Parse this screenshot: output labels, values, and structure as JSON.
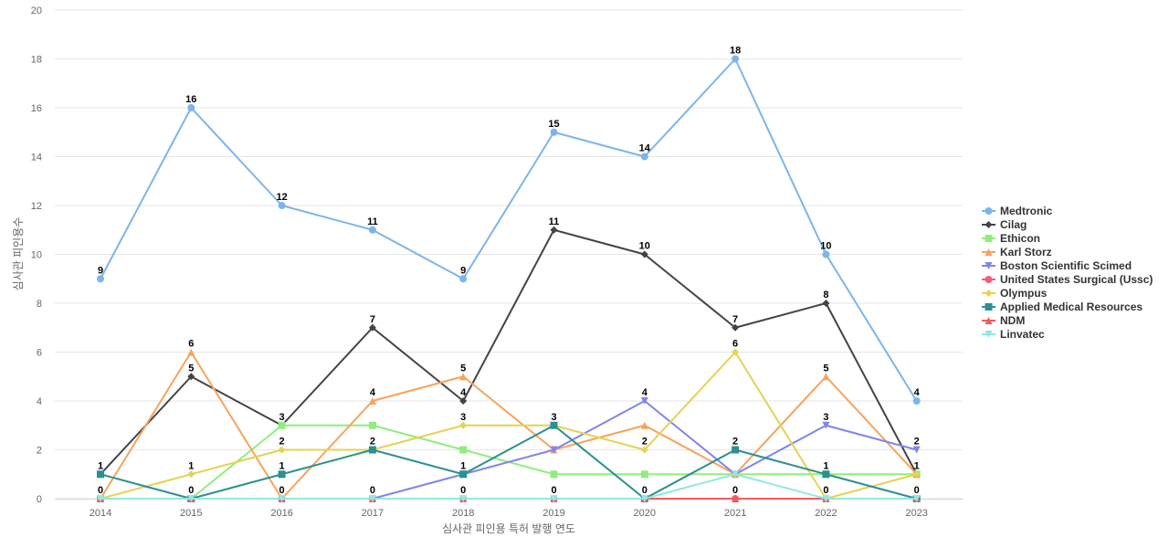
{
  "chart_data": {
    "type": "line",
    "title": "",
    "xlabel": "심사관 피인용 특허 발행 연도",
    "ylabel": "심사관 피인용수",
    "x": [
      "2014",
      "2015",
      "2016",
      "2017",
      "2018",
      "2019",
      "2020",
      "2021",
      "2022",
      "2023"
    ],
    "ylim": [
      0,
      20
    ],
    "yticks": [
      0,
      2,
      4,
      6,
      8,
      10,
      12,
      14,
      16,
      18,
      20
    ],
    "grid": true,
    "legend_position": "right",
    "series": [
      {
        "name": "Medtronic",
        "color": "#7cb5ec",
        "marker": "circle",
        "values": [
          9,
          16,
          12,
          11,
          9,
          15,
          14,
          18,
          10,
          4
        ],
        "labeled": [
          true,
          true,
          true,
          true,
          true,
          true,
          true,
          true,
          true,
          true
        ]
      },
      {
        "name": "Cilag",
        "color": "#434348",
        "marker": "diamond",
        "values": [
          1,
          5,
          3,
          7,
          4,
          11,
          10,
          7,
          8,
          1
        ],
        "labeled": [
          true,
          true,
          true,
          true,
          true,
          true,
          true,
          true,
          true,
          true
        ]
      },
      {
        "name": "Ethicon",
        "color": "#90ed7d",
        "marker": "square",
        "values": [
          0,
          0,
          3,
          3,
          2,
          1,
          1,
          1,
          1,
          1
        ],
        "labeled": [
          false,
          false,
          false,
          false,
          false,
          false,
          false,
          false,
          false,
          false
        ]
      },
      {
        "name": "Karl Storz",
        "color": "#f7a35c",
        "marker": "triangle",
        "values": [
          0,
          6,
          0,
          4,
          5,
          2,
          3,
          1,
          5,
          1
        ],
        "labeled": [
          false,
          true,
          false,
          true,
          true,
          false,
          false,
          false,
          true,
          false
        ]
      },
      {
        "name": "Boston Scientific Scimed",
        "color": "#8085e9",
        "marker": "triangle-down",
        "values": [
          0,
          0,
          0,
          0,
          1,
          2,
          4,
          1,
          3,
          2
        ],
        "labeled": [
          false,
          false,
          false,
          false,
          false,
          false,
          true,
          false,
          true,
          true
        ]
      },
      {
        "name": "United States Surgical (Ussc)",
        "color": "#f15c80",
        "marker": "circle",
        "values": [
          0,
          0,
          0,
          0,
          0,
          0,
          0,
          0,
          0,
          0
        ],
        "labeled": [
          false,
          false,
          false,
          false,
          false,
          false,
          false,
          false,
          false,
          false
        ]
      },
      {
        "name": "Olympus",
        "color": "#e4d354",
        "marker": "diamond",
        "values": [
          0,
          1,
          2,
          2,
          3,
          3,
          2,
          6,
          0,
          1
        ],
        "labeled": [
          false,
          true,
          true,
          false,
          true,
          false,
          true,
          true,
          false,
          false
        ]
      },
      {
        "name": "Applied Medical Resources",
        "color": "#2b908f",
        "marker": "square",
        "values": [
          1,
          0,
          1,
          2,
          1,
          3,
          0,
          2,
          1,
          0
        ],
        "labeled": [
          false,
          false,
          true,
          true,
          true,
          true,
          false,
          true,
          true,
          false
        ]
      },
      {
        "name": "NDM",
        "color": "#f45b5b",
        "marker": "triangle",
        "values": [
          0,
          0,
          0,
          0,
          0,
          0,
          0,
          0,
          0,
          0
        ],
        "labeled": [
          false,
          false,
          false,
          false,
          false,
          false,
          false,
          true,
          false,
          false
        ]
      },
      {
        "name": "Linvatec",
        "color": "#91e8e1",
        "marker": "triangle-down",
        "values": [
          0,
          0,
          0,
          0,
          0,
          0,
          0,
          1,
          0,
          0
        ],
        "labeled": [
          true,
          true,
          true,
          true,
          true,
          true,
          true,
          false,
          true,
          true
        ]
      }
    ]
  }
}
